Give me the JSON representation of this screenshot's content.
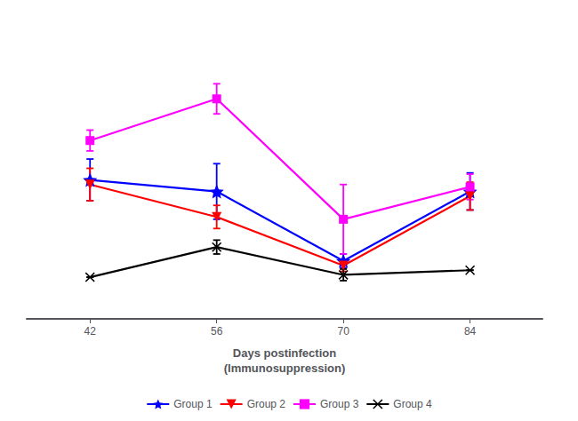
{
  "chart_data": {
    "type": "line",
    "xlabel": "Days postinfection\n(Immunosuppression)",
    "x": [
      42,
      56,
      70,
      84
    ],
    "xlim": [
      35,
      92
    ],
    "xticks": [
      42,
      56,
      70,
      84
    ],
    "ylim": [
      -0.5,
      12.5
    ],
    "grid": false,
    "legend": "bottom",
    "tick_labels": "x",
    "series": [
      {
        "name": "Group 1",
        "color": "#0000ff",
        "marker": "star",
        "values": [
          5.5,
          5.0,
          2.0,
          5.0
        ],
        "errors": [
          0.9,
          1.2,
          0.3,
          0.8
        ]
      },
      {
        "name": "Group 2",
        "color": "#ff0000",
        "marker": "triangle_down",
        "values": [
          5.3,
          3.9,
          1.8,
          4.8
        ],
        "errors": [
          0.7,
          0.5,
          0.25,
          0.6
        ]
      },
      {
        "name": "Group 3",
        "color": "#ff00ff",
        "marker": "square",
        "values": [
          7.2,
          9.0,
          3.8,
          5.2
        ],
        "errors": [
          0.45,
          0.65,
          1.5,
          0.55
        ]
      },
      {
        "name": "Group 4",
        "color": "#000000",
        "marker": "x",
        "values": [
          1.3,
          2.6,
          1.4,
          1.6
        ],
        "errors": [
          0.0,
          0.3,
          0.25,
          0.0
        ]
      }
    ]
  }
}
